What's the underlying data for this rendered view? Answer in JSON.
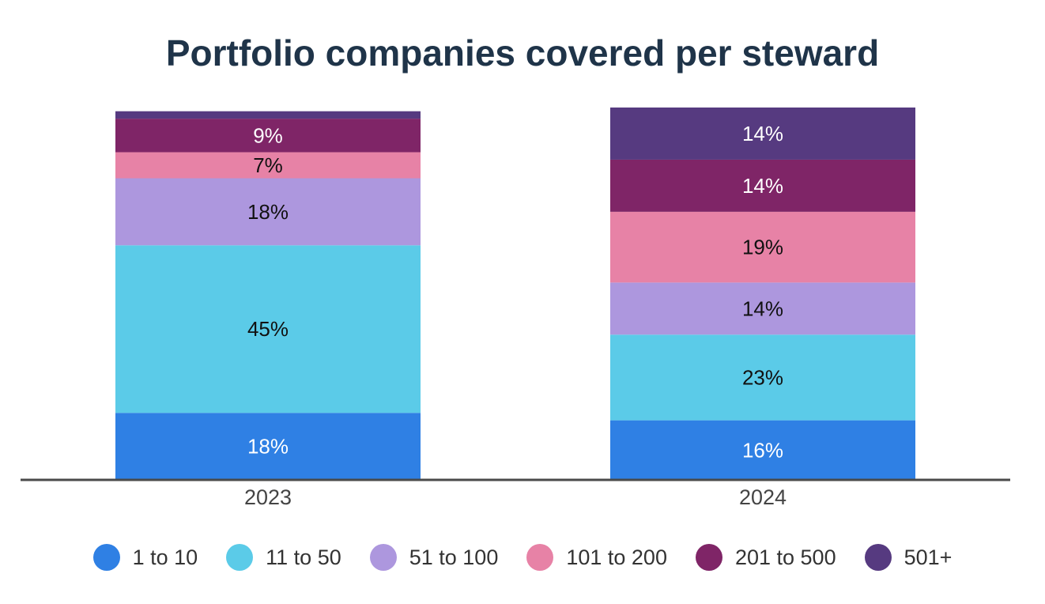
{
  "chart_data": {
    "type": "bar",
    "stacked": true,
    "title": "Portfolio companies covered per steward",
    "categories": [
      "2023",
      "2024"
    ],
    "series": [
      {
        "name": "1 to 10",
        "color": "#2f80e4",
        "values": [
          18,
          16
        ],
        "labels": [
          "18%",
          "16%"
        ],
        "label_color": "#ffffff"
      },
      {
        "name": "11 to 50",
        "color": "#5bcbe8",
        "values": [
          45,
          23
        ],
        "labels": [
          "45%",
          "23%"
        ],
        "label_color": "#111111"
      },
      {
        "name": "51 to 100",
        "color": "#ad97de",
        "values": [
          18,
          14
        ],
        "labels": [
          "18%",
          "14%"
        ],
        "label_color": "#111111"
      },
      {
        "name": "101 to 200",
        "color": "#e782a6",
        "values": [
          7,
          19
        ],
        "labels": [
          "7%",
          "19%"
        ],
        "label_color": "#111111"
      },
      {
        "name": "201 to 500",
        "color": "#7f2567",
        "values": [
          9,
          14
        ],
        "labels": [
          "9%",
          "14%"
        ],
        "label_color": "#ffffff"
      },
      {
        "name": "501+",
        "color": "#563a80",
        "values": [
          2,
          14
        ],
        "labels": [
          "",
          "14%"
        ],
        "label_color": "#ffffff"
      }
    ],
    "ylim": [
      0,
      100
    ],
    "grid": false,
    "legend_position": "bottom"
  }
}
